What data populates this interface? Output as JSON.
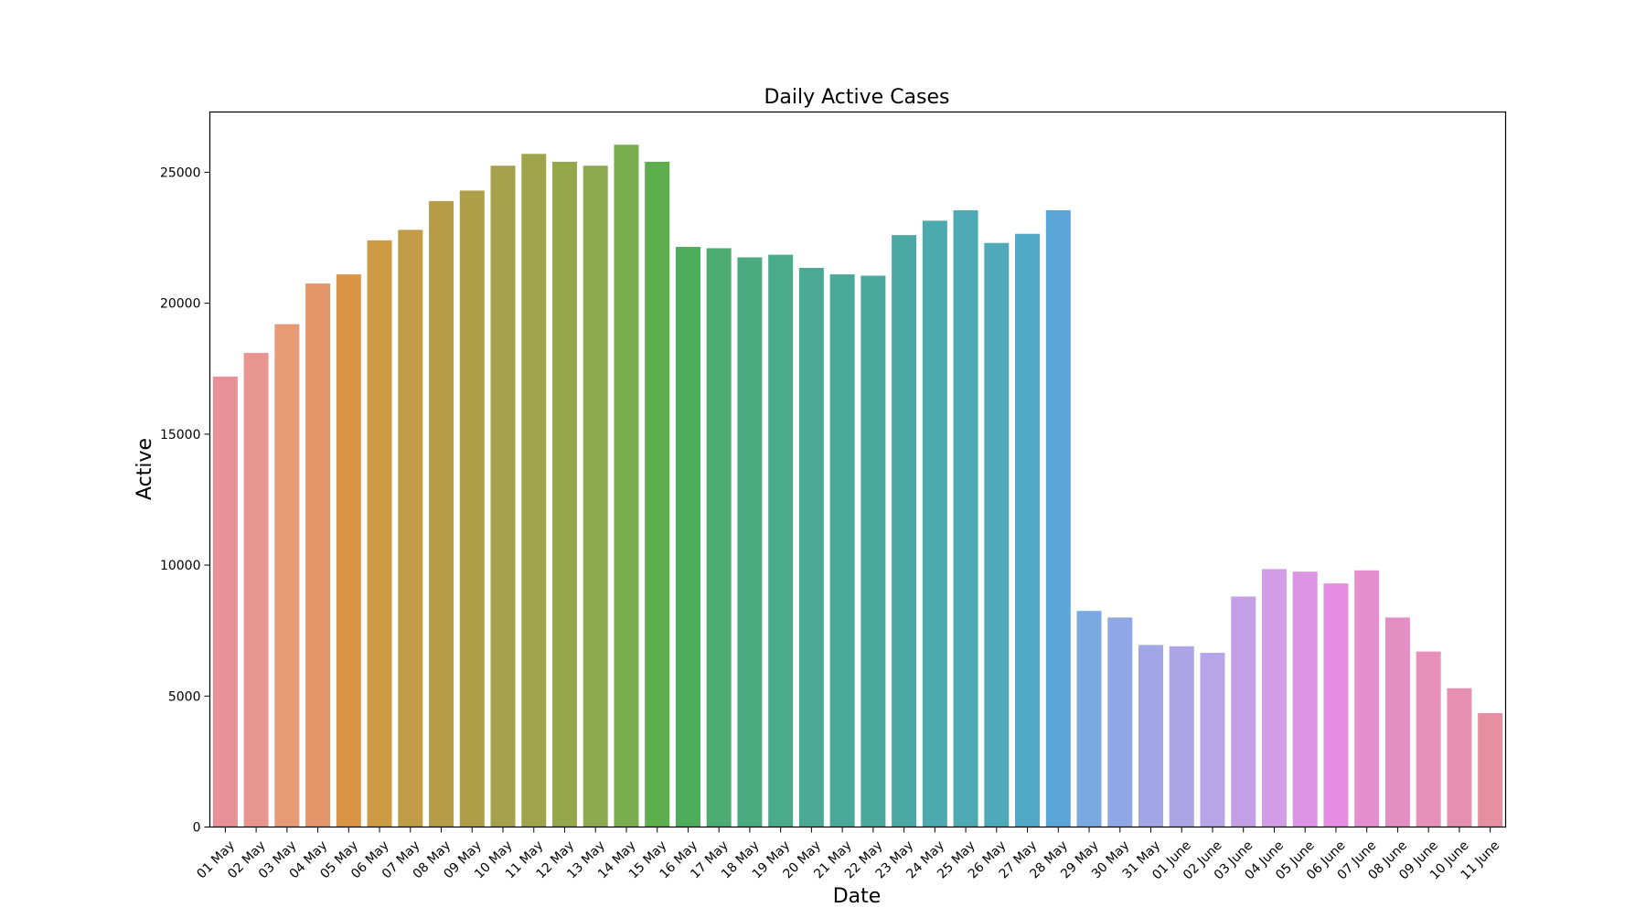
{
  "chart_data": {
    "type": "bar",
    "title": "Daily Active Cases",
    "xlabel": "Date",
    "ylabel": "Active",
    "ylim": [
      0,
      27300
    ],
    "yticks": [
      0,
      5000,
      10000,
      15000,
      20000,
      25000
    ],
    "grid": false,
    "categories": [
      "01 May",
      "02 May",
      "03 May",
      "04 May",
      "05 May",
      "06 May",
      "07 May",
      "08 May",
      "09 May",
      "10 May",
      "11 May",
      "12 May",
      "13 May",
      "14 May",
      "15 May",
      "16 May",
      "17 May",
      "18 May",
      "19 May",
      "20 May",
      "21 May",
      "22 May",
      "23 May",
      "24 May",
      "25 May",
      "26 May",
      "27 May",
      "28 May",
      "29 May",
      "30 May",
      "31 May",
      "01 June",
      "02 June",
      "03 June",
      "04 June",
      "05 June",
      "06 June",
      "07 June",
      "08 June",
      "09 June",
      "10 June",
      "11 June"
    ],
    "values": [
      17200,
      18100,
      19200,
      20750,
      21100,
      22400,
      22800,
      23900,
      24300,
      25250,
      25700,
      25400,
      25250,
      26050,
      25400,
      22150,
      22100,
      21750,
      21850,
      21350,
      21100,
      21050,
      22600,
      23150,
      23550,
      22300,
      22650,
      23550,
      8250,
      8000,
      6950,
      6900,
      6650,
      8800,
      9850,
      9750,
      9300,
      9800,
      8000,
      6700,
      5300,
      4350
    ],
    "colors": [
      "#e98f96",
      "#e9958f",
      "#e69a76",
      "#e5966b",
      "#d99446",
      "#cc9b43",
      "#c09c46",
      "#b69c47",
      "#ae9e48",
      "#a7a04a",
      "#9fa34a",
      "#96a64b",
      "#8ba94d",
      "#79ad4e",
      "#5dae4c",
      "#4ead5b",
      "#4cac72",
      "#4aab80",
      "#4aab8b",
      "#4aa993",
      "#49a898",
      "#4aa89d",
      "#4ba8a5",
      "#4ca9ad",
      "#4daab4",
      "#4eaabb",
      "#51a8c6",
      "#5aa6d9",
      "#7aa8e0",
      "#8fa7e5",
      "#a0a6e6",
      "#ada4e6",
      "#b8a4e8",
      "#c3a0e6",
      "#d29ce6",
      "#dd94e5",
      "#e48de3",
      "#e58fcf",
      "#e38fc3",
      "#e690ba",
      "#e78fb0",
      "#e68fa3"
    ]
  }
}
